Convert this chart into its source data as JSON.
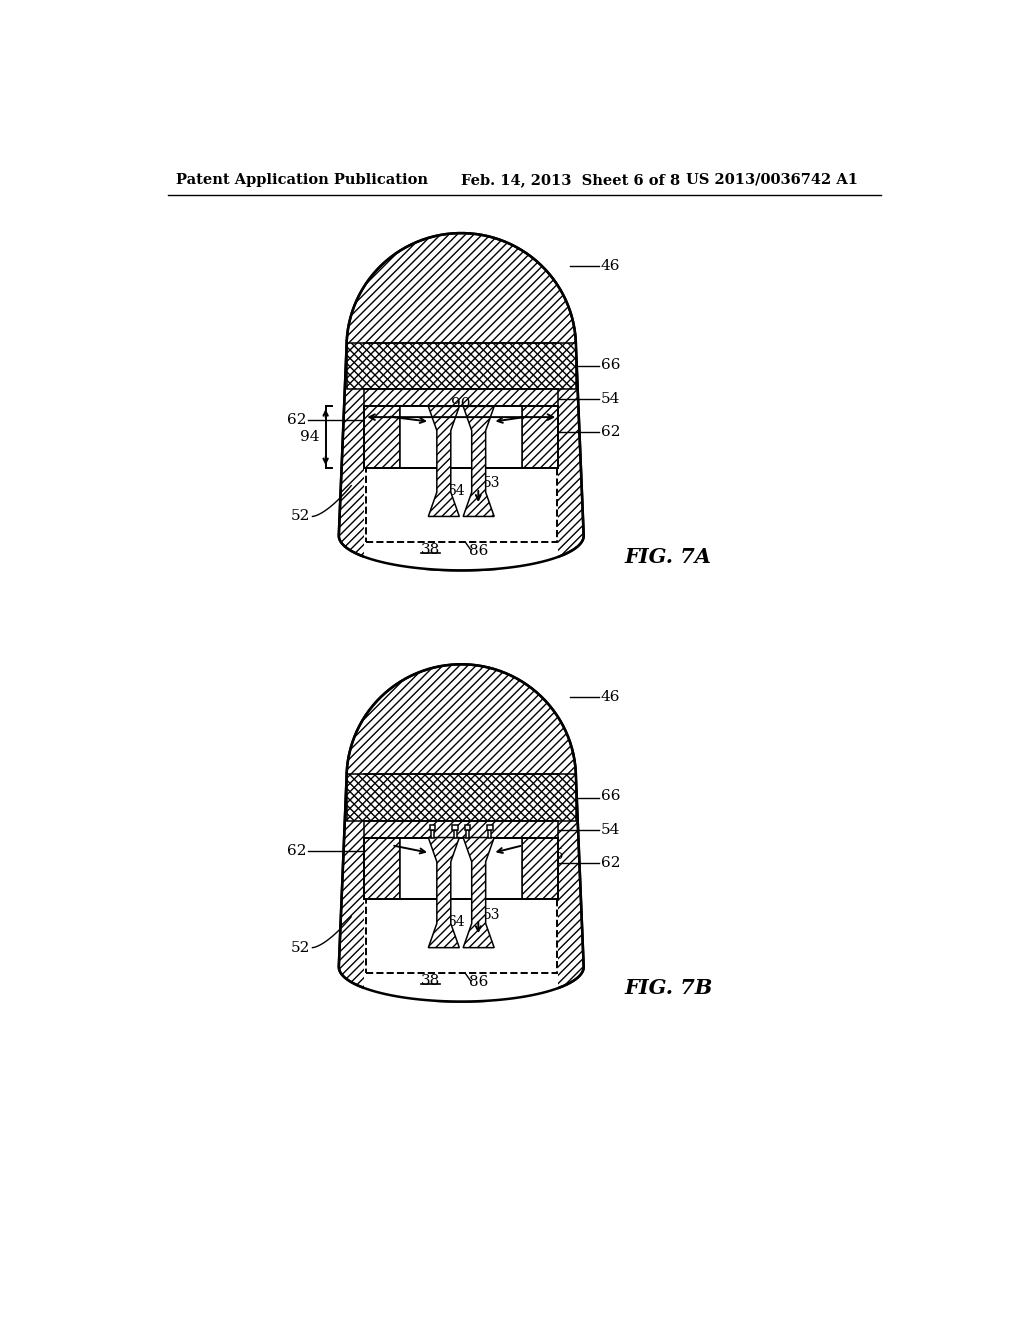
{
  "bg_color": "#ffffff",
  "header_left": "Patent Application Publication",
  "header_mid": "Feb. 14, 2013  Sheet 6 of 8",
  "header_right": "US 2013/0036742 A1",
  "fig7a_label": "FIG. 7A",
  "fig7b_label": "FIG. 7B"
}
